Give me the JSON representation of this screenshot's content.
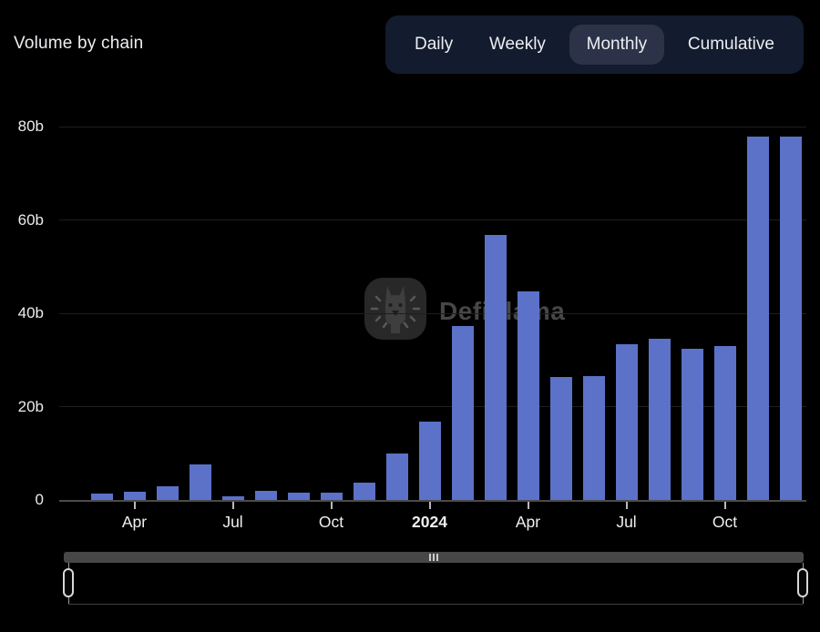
{
  "header": {
    "title": "Volume by chain",
    "tabs": [
      {
        "label": "Daily",
        "selected": false
      },
      {
        "label": "Weekly",
        "selected": false
      },
      {
        "label": "Monthly",
        "selected": true
      },
      {
        "label": "Cumulative",
        "selected": false
      }
    ]
  },
  "watermark": {
    "text": "DefiLlama"
  },
  "chart_data": {
    "type": "bar",
    "title": "Volume by chain",
    "unit": "billions USD",
    "categories": [
      "Mar 2023",
      "Apr 2023",
      "May 2023",
      "Jun 2023",
      "Jul 2023",
      "Aug 2023",
      "Sep 2023",
      "Oct 2023",
      "Nov 2023",
      "Dec 2023",
      "Jan 2024",
      "Feb 2024",
      "Mar 2024",
      "Apr 2024",
      "May 2024",
      "Jun 2024",
      "Jul 2024",
      "Aug 2024",
      "Sep 2024",
      "Oct 2024",
      "Nov 2024",
      "Dec 2024"
    ],
    "values": [
      1.4,
      1.7,
      2.9,
      7.6,
      0.7,
      1.9,
      1.5,
      1.6,
      3.7,
      9.9,
      16.8,
      37.3,
      56.7,
      44.7,
      26.3,
      26.5,
      33.3,
      34.6,
      32.4,
      33.0,
      77.9,
      77.8
    ],
    "y_ticks": [
      {
        "label": "0",
        "value": 0
      },
      {
        "label": "20b",
        "value": 20
      },
      {
        "label": "40b",
        "value": 40
      },
      {
        "label": "60b",
        "value": 60
      },
      {
        "label": "80b",
        "value": 80
      }
    ],
    "x_ticks": [
      {
        "label": "Apr",
        "index": 1,
        "bold": false
      },
      {
        "label": "Jul",
        "index": 4,
        "bold": false
      },
      {
        "label": "Oct",
        "index": 7,
        "bold": false
      },
      {
        "label": "2024",
        "index": 10,
        "bold": true
      },
      {
        "label": "Apr",
        "index": 13,
        "bold": false
      },
      {
        "label": "Jul",
        "index": 16,
        "bold": false
      },
      {
        "label": "Oct",
        "index": 19,
        "bold": false
      }
    ],
    "ylim": [
      0,
      80
    ],
    "xlabel": "",
    "ylabel": "",
    "grid": true,
    "legend": "none"
  },
  "theme": {
    "bg_color": "#000000",
    "text_color": "#eceef1",
    "bar_color": "#5c72c8",
    "tab_bg": "#131b2e",
    "tab_selected_bg": "#2c3348",
    "grid_color": "#1e1e1e",
    "axis_color": "#4b4b4e",
    "watermark_color": "#474747"
  }
}
